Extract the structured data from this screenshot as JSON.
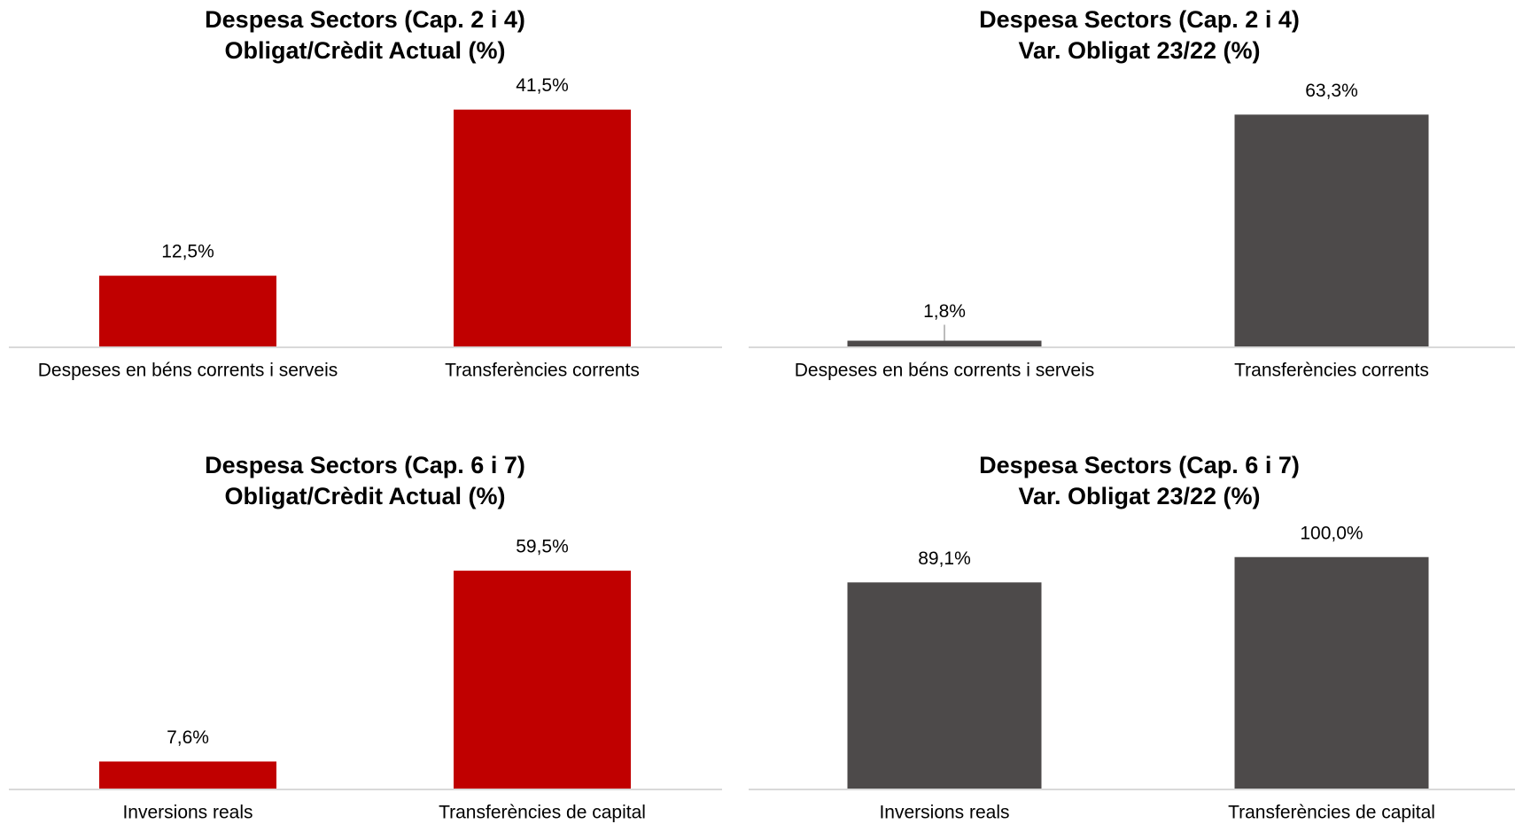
{
  "chart_data": [
    {
      "type": "bar",
      "title": [
        "Despesa Sectors (Cap. 2 i 4)",
        "Obligat/Crèdit Actual (%)"
      ],
      "categories": [
        "Despeses en béns corrents i serveis",
        "Transferències corrents"
      ],
      "values": [
        12.5,
        41.5
      ],
      "value_labels": [
        "12,5%",
        "41,5%"
      ],
      "color": "#c00000",
      "ylim": [
        0,
        43
      ]
    },
    {
      "type": "bar",
      "title": [
        "Despesa Sectors (Cap. 2 i 4)",
        "Var. Obligat  23/22 (%)"
      ],
      "categories": [
        "Despeses en béns corrents i serveis",
        "Transferències corrents"
      ],
      "values": [
        1.8,
        63.3
      ],
      "value_labels": [
        "1,8%",
        "63,3%"
      ],
      "color": "#4d4a4a",
      "ylim": [
        0,
        67
      ]
    },
    {
      "type": "bar",
      "title": [
        "Despesa Sectors (Cap. 6 i 7)",
        "Obligat/Crèdit Actual (%)"
      ],
      "categories": [
        "Inversions reals",
        "Transferències de capital"
      ],
      "values": [
        7.6,
        59.5
      ],
      "value_labels": [
        "7,6%",
        "59,5%"
      ],
      "color": "#c00000",
      "ylim": [
        0,
        67
      ]
    },
    {
      "type": "bar",
      "title": [
        "Despesa  Sectors (Cap. 6 i 7)",
        "Var. Obligat 23/22 (%)"
      ],
      "categories": [
        "Inversions reals",
        "Transferències de capital"
      ],
      "values": [
        89.1,
        100.0
      ],
      "value_labels": [
        "89,1%",
        "100,0%"
      ],
      "color": "#4d4a4a",
      "ylim": [
        0,
        106
      ]
    }
  ]
}
